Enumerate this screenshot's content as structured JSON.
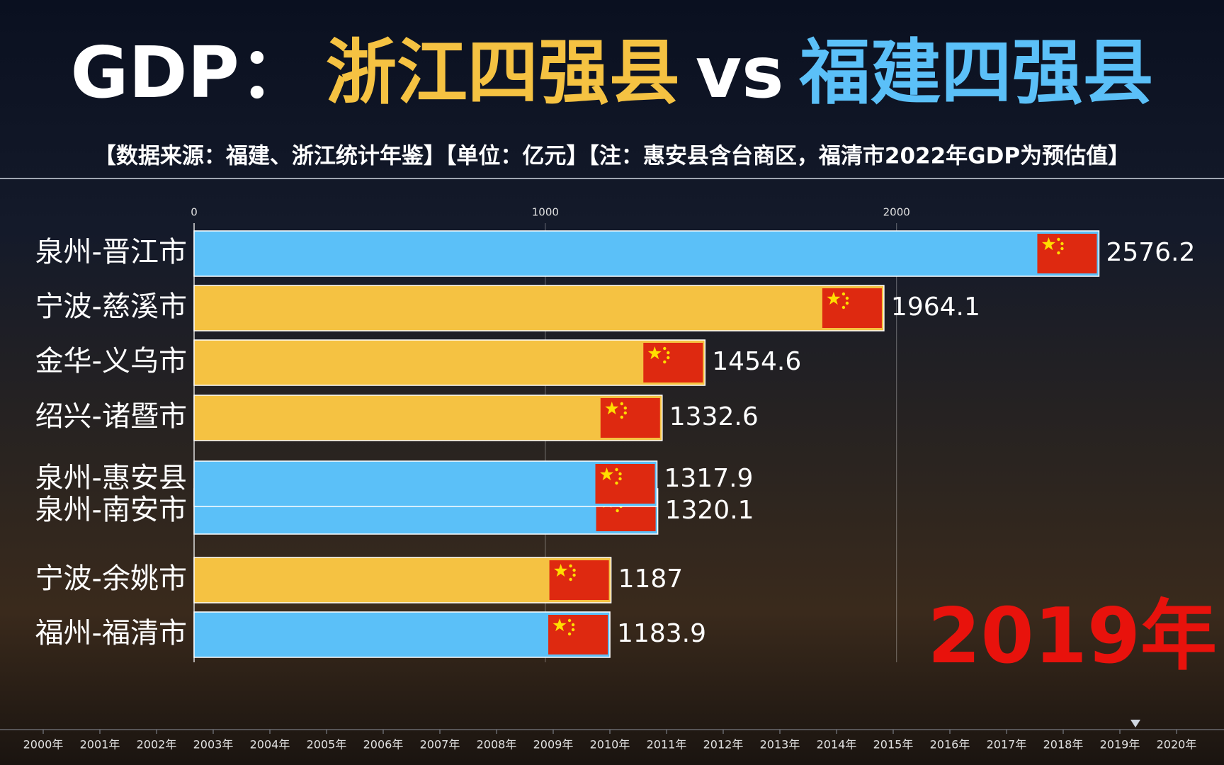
{
  "chart_data": {
    "type": "bar",
    "orientation": "horizontal",
    "title": [
      "GDP：",
      "浙江四强县",
      "vs",
      "福建四强县"
    ],
    "title_colors": [
      "#ffffff",
      "#f5c242",
      "#ffffff",
      "#5bc0f8"
    ],
    "subtitle": "【数据来源：福建、浙江统计年鉴】【单位：亿元】【注：惠安县含台商区，福清市2022年GDP为预估值】",
    "categories": [
      "泉州-晋江市",
      "宁波-慈溪市",
      "金华-义乌市",
      "绍兴-诸暨市",
      "泉州-惠安县",
      "泉州-南安市",
      "宁波-余姚市",
      "福州-福清市"
    ],
    "values": [
      2576.2,
      1964.1,
      1454.6,
      1332.6,
      1317.9,
      1320.1,
      1187,
      1183.9
    ],
    "colors": [
      "#5bc0f8",
      "#f5c242",
      "#f5c242",
      "#f5c242",
      "#5bc0f8",
      "#5bc0f8",
      "#f5c242",
      "#5bc0f8"
    ],
    "xlim": [
      0,
      2900
    ],
    "xticks": [
      0,
      1000,
      2000
    ],
    "grid": true,
    "year": "2019年",
    "year_color": "#e8120c",
    "timeline": [
      "2000年",
      "2001年",
      "2002年",
      "2003年",
      "2004年",
      "2005年",
      "2006年",
      "2007年",
      "2008年",
      "2009年",
      "2010年",
      "2011年",
      "2012年",
      "2013年",
      "2014年",
      "2015年",
      "2016年",
      "2017年",
      "2018年",
      "2019年",
      "2020年"
    ]
  }
}
